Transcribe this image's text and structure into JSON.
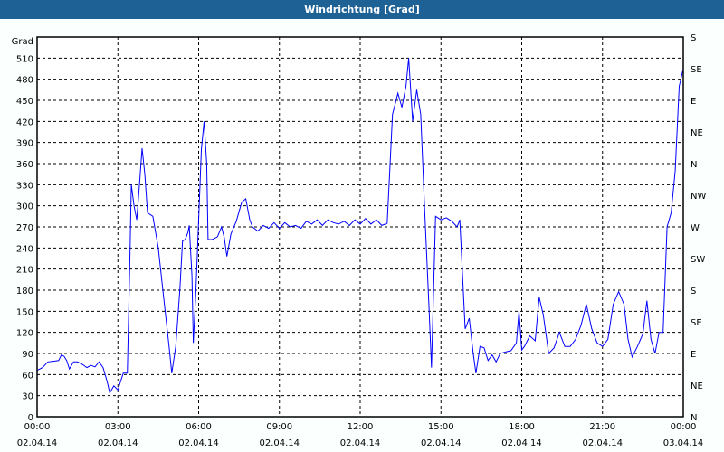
{
  "window": {
    "title": "Windrichtung [Grad]"
  },
  "chart_data": {
    "type": "line",
    "title": "Windrichtung [Grad]",
    "ylabel": "Grad",
    "ylim": [
      0,
      540
    ],
    "yticks": [
      0,
      30,
      60,
      90,
      120,
      150,
      180,
      210,
      240,
      270,
      300,
      330,
      360,
      390,
      420,
      450,
      480,
      510
    ],
    "right_axis_labels": [
      {
        "value": 540,
        "label": "S"
      },
      {
        "value": 495,
        "label": "SE"
      },
      {
        "value": 450,
        "label": "E"
      },
      {
        "value": 405,
        "label": "NE"
      },
      {
        "value": 360,
        "label": "N"
      },
      {
        "value": 315,
        "label": "NW"
      },
      {
        "value": 270,
        "label": "W"
      },
      {
        "value": 225,
        "label": "SW"
      },
      {
        "value": 180,
        "label": "S"
      },
      {
        "value": 135,
        "label": "SE"
      },
      {
        "value": 90,
        "label": "E"
      },
      {
        "value": 45,
        "label": "NE"
      },
      {
        "value": 0,
        "label": "N"
      }
    ],
    "xticks": [
      {
        "time": "00:00",
        "date": "02.04.14"
      },
      {
        "time": "03:00",
        "date": "02.04.14"
      },
      {
        "time": "06:00",
        "date": "02.04.14"
      },
      {
        "time": "09:00",
        "date": "02.04.14"
      },
      {
        "time": "12:00",
        "date": "02.04.14"
      },
      {
        "time": "15:00",
        "date": "02.04.14"
      },
      {
        "time": "18:00",
        "date": "02.04.14"
      },
      {
        "time": "21:00",
        "date": "02.04.14"
      },
      {
        "time": "00:00",
        "date": "03.04.14"
      }
    ],
    "xlim_hours": [
      0,
      24
    ],
    "grid": true,
    "series_color": "#0000ff",
    "x_hours": [
      0,
      0.2,
      0.4,
      0.6,
      0.8,
      0.9,
      1.0,
      1.1,
      1.2,
      1.35,
      1.5,
      1.7,
      1.85,
      2.0,
      2.15,
      2.3,
      2.45,
      2.6,
      2.7,
      2.85,
      3.0,
      3.1,
      3.2,
      3.35,
      3.45,
      3.5,
      3.6,
      3.7,
      3.8,
      3.9,
      4.0,
      4.1,
      4.3,
      4.5,
      4.7,
      4.9,
      5.0,
      5.15,
      5.3,
      5.4,
      5.5,
      5.6,
      5.65,
      5.75,
      5.8,
      5.9,
      6.0,
      6.1,
      6.2,
      6.3,
      6.35,
      6.5,
      6.7,
      6.85,
      6.95,
      7.05,
      7.2,
      7.4,
      7.6,
      7.75,
      7.9,
      8.0,
      8.2,
      8.4,
      8.6,
      8.8,
      9.0,
      9.2,
      9.4,
      9.6,
      9.8,
      10.0,
      10.2,
      10.4,
      10.6,
      10.8,
      11.0,
      11.2,
      11.4,
      11.6,
      11.8,
      12.0,
      12.2,
      12.4,
      12.6,
      12.8,
      13.0,
      13.1,
      13.2,
      13.4,
      13.55,
      13.7,
      13.8,
      13.95,
      14.1,
      14.25,
      14.4,
      14.55,
      14.65,
      14.8,
      15.0,
      15.2,
      15.4,
      15.6,
      15.7,
      15.9,
      16.05,
      16.2,
      16.3,
      16.45,
      16.6,
      16.75,
      16.9,
      17.05,
      17.2,
      17.4,
      17.6,
      17.8,
      17.9,
      18.0,
      18.1,
      18.3,
      18.5,
      18.65,
      18.8,
      19.0,
      19.2,
      19.4,
      19.6,
      19.8,
      20.0,
      20.2,
      20.4,
      20.6,
      20.8,
      21.0,
      21.2,
      21.4,
      21.6,
      21.8,
      21.95,
      22.1,
      22.3,
      22.5,
      22.65,
      22.8,
      22.95,
      23.1,
      23.25,
      23.4,
      23.55,
      23.7,
      23.85,
      24.0
    ],
    "values": [
      66,
      70,
      78,
      79,
      80,
      88,
      86,
      80,
      68,
      78,
      78,
      74,
      70,
      73,
      71,
      78,
      70,
      50,
      34,
      44,
      38,
      50,
      62,
      62,
      230,
      330,
      300,
      280,
      330,
      382,
      345,
      290,
      285,
      240,
      170,
      100,
      62,
      100,
      180,
      250,
      252,
      262,
      272,
      200,
      105,
      180,
      280,
      380,
      420,
      360,
      252,
      252,
      256,
      270,
      255,
      228,
      260,
      278,
      305,
      310,
      280,
      270,
      264,
      272,
      268,
      276,
      268,
      276,
      270,
      272,
      268,
      278,
      274,
      280,
      272,
      280,
      276,
      274,
      278,
      272,
      280,
      274,
      282,
      274,
      280,
      272,
      275,
      350,
      430,
      460,
      440,
      470,
      510,
      420,
      465,
      430,
      290,
      160,
      70,
      285,
      280,
      283,
      278,
      270,
      280,
      125,
      140,
      90,
      62,
      100,
      98,
      80,
      88,
      78,
      90,
      92,
      94,
      105,
      150,
      95,
      100,
      115,
      108,
      170,
      145,
      90,
      98,
      120,
      100,
      100,
      110,
      130,
      160,
      125,
      105,
      100,
      110,
      160,
      178,
      160,
      110,
      85,
      100,
      118,
      165,
      110,
      90,
      120,
      120,
      270,
      290,
      350,
      470,
      495
    ]
  }
}
